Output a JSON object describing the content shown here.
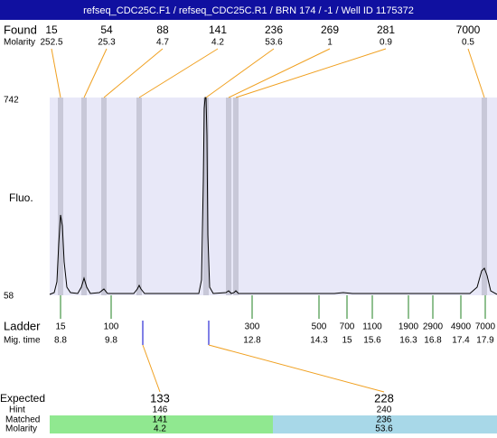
{
  "header": {
    "title": "refseq_CDC25C.F1 / refseq_CDC25C.R1 / BRN 174 / -1 / Well ID 1175372"
  },
  "found": {
    "label": "Found",
    "values": [
      15,
      54,
      88,
      141,
      236,
      269,
      281,
      7000
    ]
  },
  "molarity": {
    "label": "Molarity",
    "values": [
      252.5,
      25.3,
      4.7,
      4.2,
      53.6,
      1,
      0.9,
      0.5
    ]
  },
  "axis": {
    "label": "Fluo.",
    "max": 742,
    "min": 58
  },
  "ladder": {
    "label": "Ladder",
    "sizes": [
      15,
      100,
      300,
      500,
      700,
      1100,
      1900,
      2900,
      4900,
      7000
    ],
    "mig_label": "Mig. time",
    "mig_times": [
      8.8,
      9.8,
      12.8,
      14.3,
      15,
      15.6,
      16.3,
      16.8,
      17.4,
      17.9
    ]
  },
  "expected": {
    "label": "Expected",
    "values": [
      133,
      228
    ],
    "hint_label": "Hint",
    "hints": [
      146,
      240
    ],
    "matched_label": "Matched",
    "matched": [
      141,
      236
    ],
    "molarity_label": "Molarity",
    "molarity": [
      4.2,
      53.6
    ]
  }
}
